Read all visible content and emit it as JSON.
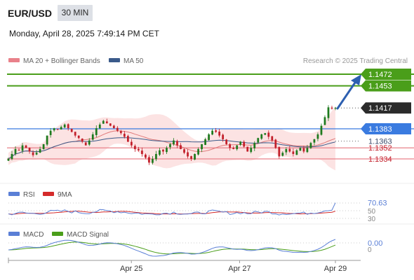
{
  "header": {
    "pair": "EUR/USD",
    "timeframe": "30 MIN",
    "datetime": "Monday, April 28, 2025 7:49:14 PM CET"
  },
  "legend": {
    "ma20": "MA 20 + Bollinger Bands",
    "ma50": "MA 50",
    "credit": "Research © 2025 Trading Central"
  },
  "colors": {
    "resistance": "#4a9e1a",
    "support": "#e9818a",
    "pivot": "#3a7be0",
    "last_price": "#2b2b2b",
    "candle_up": "#1e7a1e",
    "candle_down": "#c21f2a",
    "bollinger_fill": "#fbdada",
    "ma20": "#e07a7a",
    "ma50": "#3a5a8a",
    "rsi": "#5a7fd6",
    "rsi_ma": "#d42a2a",
    "macd": "#5a7fd6",
    "macd_signal": "#4a9e1a",
    "forecast_arrow": "#2d5fb0"
  },
  "chart_data": [
    {
      "type": "candlestick",
      "name": "price",
      "y_range": [
        1.132,
        1.148
      ],
      "levels": [
        {
          "value": 1.1472,
          "label": "1.1472",
          "kind": "resistance"
        },
        {
          "value": 1.1453,
          "label": "1.1453",
          "kind": "resistance"
        },
        {
          "value": 1.1417,
          "label": "1.1417",
          "kind": "last"
        },
        {
          "value": 1.1383,
          "label": "1.1383",
          "kind": "pivot"
        },
        {
          "value": 1.1363,
          "label": "1.1363",
          "kind": "ma"
        },
        {
          "value": 1.1352,
          "label": "1.1352",
          "kind": "support"
        },
        {
          "value": 1.1334,
          "label": "1.1334",
          "kind": "support"
        }
      ],
      "closes": [
        1.1334,
        1.1342,
        1.135,
        1.1348,
        1.1356,
        1.1352,
        1.1346,
        1.134,
        1.1344,
        1.135,
        1.1358,
        1.1372,
        1.138,
        1.1384,
        1.1382,
        1.1386,
        1.139,
        1.1384,
        1.1378,
        1.1372,
        1.1368,
        1.1362,
        1.1356,
        1.1364,
        1.1374,
        1.1384,
        1.139,
        1.1396,
        1.1392,
        1.1388,
        1.1384,
        1.138,
        1.1376,
        1.137,
        1.1362,
        1.1356,
        1.135,
        1.1348,
        1.1342,
        1.1336,
        1.1328,
        1.1334,
        1.1342,
        1.1348,
        1.1346,
        1.1352,
        1.1358,
        1.1364,
        1.1356,
        1.135,
        1.1344,
        1.1338,
        1.1334,
        1.1342,
        1.135,
        1.1358,
        1.1366,
        1.1374,
        1.138,
        1.1378,
        1.1372,
        1.1366,
        1.1358,
        1.1352,
        1.135,
        1.1356,
        1.1362,
        1.1354,
        1.1346,
        1.1352,
        1.136,
        1.1368,
        1.1374,
        1.1376,
        1.137,
        1.1364,
        1.1352,
        1.1338,
        1.1344,
        1.135,
        1.1346,
        1.1342,
        1.1348,
        1.1352,
        1.1346,
        1.1352,
        1.136,
        1.1366,
        1.1374,
        1.1388,
        1.1402,
        1.1418,
        1.1416,
        1.1417
      ],
      "x_ticks": [
        "Apr 25",
        "Apr 27",
        "Apr 29"
      ]
    },
    {
      "type": "line",
      "name": "RSI",
      "legend": [
        "RSI",
        "9MA"
      ],
      "value_label": "70.63",
      "levels": [
        "70",
        "50",
        "30"
      ]
    },
    {
      "type": "line",
      "name": "MACD",
      "legend": [
        "MACD",
        "MACD Signal"
      ],
      "value_label": "0.00"
    }
  ]
}
